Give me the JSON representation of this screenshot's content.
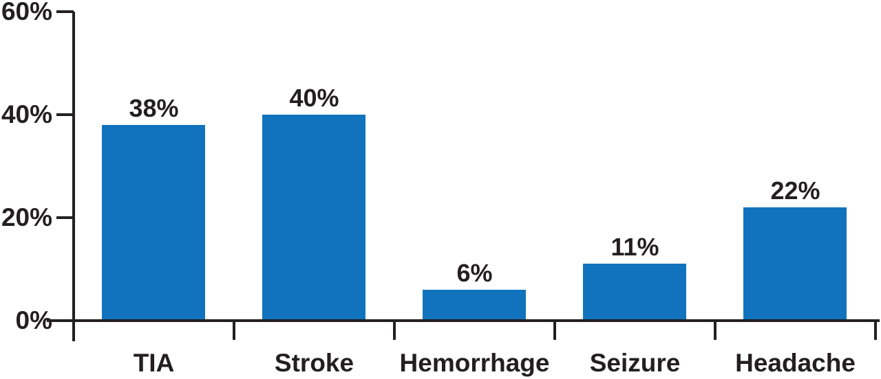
{
  "chart_data": {
    "type": "bar",
    "title": "",
    "xlabel": "",
    "ylabel": "",
    "categories": [
      "TIA",
      "Stroke",
      "Hemorrhage",
      "Seizure",
      "Headache"
    ],
    "values": [
      38,
      40,
      6,
      11,
      22
    ],
    "value_labels": [
      "38%",
      "40%",
      "6%",
      "11%",
      "22%"
    ],
    "ylim": [
      0,
      60
    ],
    "y_ticks": [
      {
        "value": 0,
        "label": "0%"
      },
      {
        "value": 20,
        "label": "20%"
      },
      {
        "value": 40,
        "label": "40%"
      },
      {
        "value": 60,
        "label": "60%"
      }
    ],
    "grid": false,
    "legend": false,
    "bar_color": "#1173bd",
    "axis_color": "#231f20",
    "text_color": "#231f20",
    "background": "#ffffff"
  }
}
